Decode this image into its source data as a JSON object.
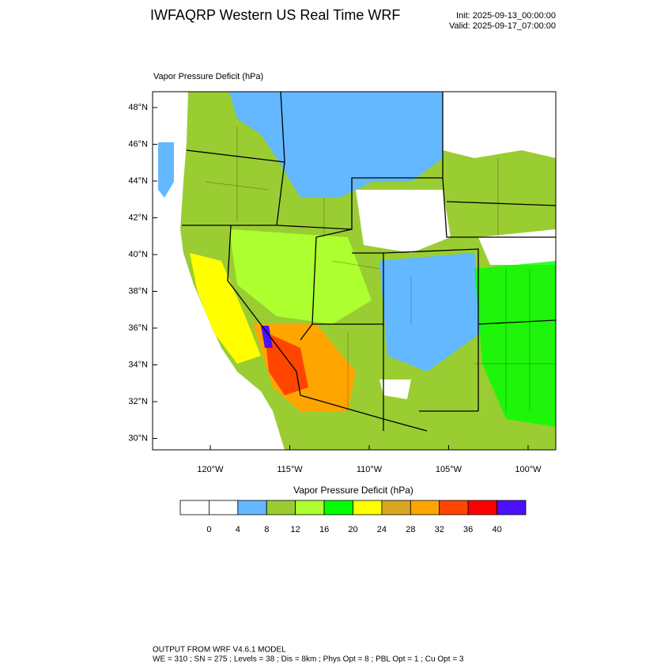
{
  "header": {
    "title": "IWFAQRP Western US Real Time WRF",
    "init": "Init: 2025-09-13_00:00:00",
    "valid": "Valid: 2025-09-17_07:00:00"
  },
  "map": {
    "field_label": "Vapor Pressure Deficit   (hPa)",
    "lat_labels": [
      "48°N",
      "46°N",
      "44°N",
      "42°N",
      "40°N",
      "38°N",
      "36°N",
      "34°N",
      "32°N",
      "30°N"
    ],
    "lon_labels": [
      "120°W",
      "115°W",
      "110°W",
      "105°W",
      "100°W"
    ]
  },
  "colorbar": {
    "title": "Vapor Pressure Deficit  (hPa)",
    "colors": [
      "#ffffff",
      "#ffffff",
      "#63b8ff",
      "#9acd32",
      "#adff2f",
      "#00ff00",
      "#ffff00",
      "#daa520",
      "#ffa500",
      "#ff4500",
      "#ff0000",
      "#4b10ff"
    ],
    "labels": [
      0,
      4,
      8,
      12,
      16,
      20,
      24,
      28,
      32,
      36,
      40
    ]
  },
  "footer": {
    "line1": "OUTPUT FROM WRF V4.6.1 MODEL",
    "line2": "WE = 310 ; SN = 275 ; Levels = 38 ; Dis = 8km ; Phys Opt = 8 ; PBL Opt = 1 ; Cu Opt = 3"
  }
}
